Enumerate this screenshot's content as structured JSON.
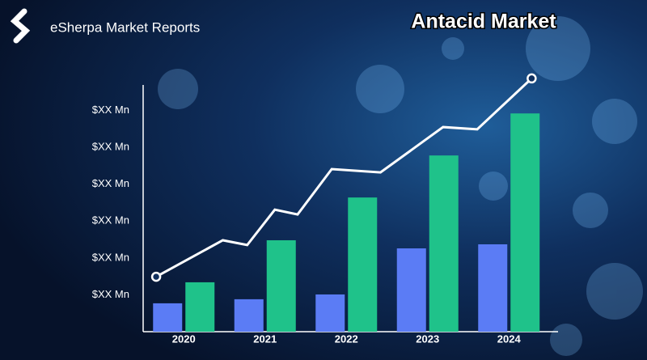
{
  "header": {
    "brand": "eSherpa Market Reports"
  },
  "chart_data": {
    "type": "bar",
    "title": "Antacid Market",
    "categories": [
      "2020",
      "2021",
      "2022",
      "2023",
      "2024"
    ],
    "series": [
      {
        "color": "#5b7cf5",
        "values": [
          7.7,
          8.8,
          10.1,
          22.6,
          23.7
        ]
      },
      {
        "color": "#1fc28a",
        "values": [
          13.4,
          24.8,
          36.4,
          47.8,
          59.2
        ]
      }
    ],
    "trend": {
      "color": "#ffffff",
      "x": [
        2019.66,
        2020.48,
        2020.78,
        2021.12,
        2021.4,
        2021.82,
        2022.42,
        2023.19,
        2023.61,
        2024.28
      ],
      "values": [
        14.9,
        24.8,
        23.5,
        33.1,
        31.8,
        44.1,
        43.2,
        55.5,
        54.9,
        68.7
      ]
    },
    "xlim": [
      2019.5,
      2024.5
    ],
    "ylim": [
      0,
      70
    ],
    "yticks": [
      {
        "value": 10,
        "label": "$XX Mn"
      },
      {
        "value": 20,
        "label": "$XX Mn"
      },
      {
        "value": 30,
        "label": "$XX Mn"
      },
      {
        "value": 40,
        "label": "$XX Mn"
      },
      {
        "value": 50,
        "label": "$XX Mn"
      },
      {
        "value": 60,
        "label": "$XX Mn"
      }
    ],
    "grid": false
  }
}
